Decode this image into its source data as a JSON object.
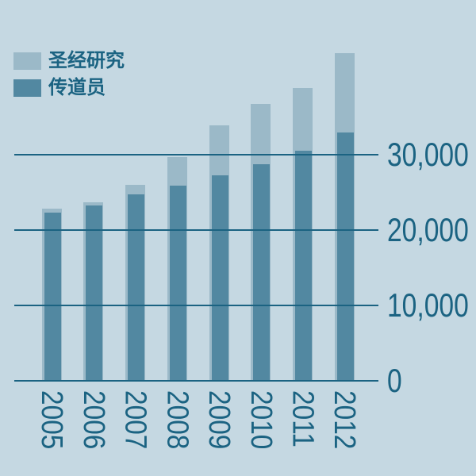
{
  "chart_data": {
    "type": "bar",
    "title": "",
    "categories": [
      "2005",
      "2006",
      "2007",
      "2008",
      "2009",
      "2010",
      "2011",
      "2012"
    ],
    "series": [
      {
        "name": "圣经研究",
        "color": "#9bb9c8",
        "values": [
          22850,
          23700,
          26000,
          29700,
          33900,
          36750,
          38850,
          43500
        ]
      },
      {
        "name": "传道员",
        "color": "#5288a1",
        "values": [
          22300,
          23250,
          24700,
          25900,
          27250,
          28750,
          30500,
          33000
        ]
      }
    ],
    "bar_style": "overlay-front-back",
    "xlabel": "",
    "ylabel": "",
    "y_axis": {
      "side": "right",
      "tick_values": [
        30000,
        20000,
        10000,
        0
      ],
      "tick_labels": [
        "30,000",
        "20,000",
        "10,000",
        "0"
      ],
      "min": 0,
      "max": 50000
    },
    "gridlines": true,
    "legend_position": "top-left"
  },
  "legend": {
    "items": [
      {
        "label": "圣经研究",
        "color": "#9bb9c8"
      },
      {
        "label": "传道员",
        "color": "#5288a1"
      }
    ]
  },
  "colors": {
    "background": "#c5d8e2",
    "axis_text": "#1b6382",
    "gridline": "#1b6382",
    "bar_light": "#9bb9c8",
    "bar_dark": "#5288a1"
  }
}
